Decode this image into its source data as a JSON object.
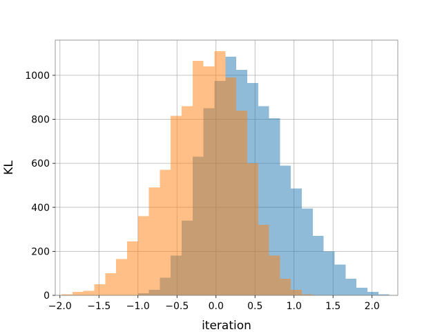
{
  "chart_data": {
    "type": "bar",
    "title": "",
    "xlabel": "iteration",
    "ylabel": "KL",
    "xlim": [
      -2.06,
      2.33
    ],
    "ylim": [
      0,
      1160
    ],
    "grid": true,
    "legend": "none",
    "x_ticks": [
      -2.0,
      -1.5,
      -1.0,
      -0.5,
      0.0,
      0.5,
      1.0,
      1.5,
      2.0
    ],
    "x_tick_labels": [
      "−2.0",
      "−1.5",
      "−1.0",
      "−0.5",
      "0.0",
      "0.5",
      "1.0",
      "1.5",
      "2.0"
    ],
    "y_ticks": [
      0,
      200,
      400,
      600,
      800,
      1000
    ],
    "y_tick_labels": [
      "0",
      "200",
      "400",
      "600",
      "800",
      "1000"
    ],
    "series": [
      {
        "color": "#1f77b4",
        "opacity": 0.5,
        "bins": [
          [
            -1.0,
            -0.86,
            10
          ],
          [
            -0.86,
            -0.72,
            25
          ],
          [
            -0.72,
            -0.58,
            80
          ],
          [
            -0.58,
            -0.44,
            180
          ],
          [
            -0.44,
            -0.3,
            340
          ],
          [
            -0.3,
            -0.16,
            630
          ],
          [
            -0.16,
            -0.02,
            850
          ],
          [
            -0.02,
            0.12,
            975
          ],
          [
            0.12,
            0.26,
            1085
          ],
          [
            0.26,
            0.4,
            1025
          ],
          [
            0.4,
            0.54,
            965
          ],
          [
            0.54,
            0.68,
            860
          ],
          [
            0.68,
            0.82,
            805
          ],
          [
            0.82,
            0.96,
            590
          ],
          [
            0.96,
            1.1,
            485
          ],
          [
            1.1,
            1.24,
            395
          ],
          [
            1.24,
            1.38,
            270
          ],
          [
            1.38,
            1.52,
            200
          ],
          [
            1.52,
            1.66,
            140
          ],
          [
            1.66,
            1.8,
            75
          ],
          [
            1.8,
            1.94,
            35
          ],
          [
            1.94,
            2.08,
            15
          ],
          [
            2.08,
            2.22,
            5
          ]
        ]
      },
      {
        "color": "#ff7f0e",
        "opacity": 0.5,
        "bins": [
          [
            -1.98,
            -1.84,
            5
          ],
          [
            -1.84,
            -1.7,
            15
          ],
          [
            -1.7,
            -1.56,
            20
          ],
          [
            -1.56,
            -1.42,
            50
          ],
          [
            -1.42,
            -1.28,
            100
          ],
          [
            -1.28,
            -1.14,
            165
          ],
          [
            -1.14,
            -1.0,
            245
          ],
          [
            -1.0,
            -0.86,
            360
          ],
          [
            -0.86,
            -0.72,
            490
          ],
          [
            -0.72,
            -0.58,
            570
          ],
          [
            -0.58,
            -0.44,
            815
          ],
          [
            -0.44,
            -0.3,
            860
          ],
          [
            -0.3,
            -0.16,
            1065
          ],
          [
            -0.16,
            -0.02,
            1040
          ],
          [
            -0.02,
            0.12,
            1110
          ],
          [
            0.12,
            0.26,
            990
          ],
          [
            0.26,
            0.4,
            840
          ],
          [
            0.4,
            0.54,
            600
          ],
          [
            0.54,
            0.68,
            320
          ],
          [
            0.68,
            0.82,
            180
          ],
          [
            0.82,
            0.96,
            75
          ],
          [
            0.96,
            1.1,
            25
          ],
          [
            1.1,
            1.24,
            5
          ]
        ]
      }
    ]
  }
}
